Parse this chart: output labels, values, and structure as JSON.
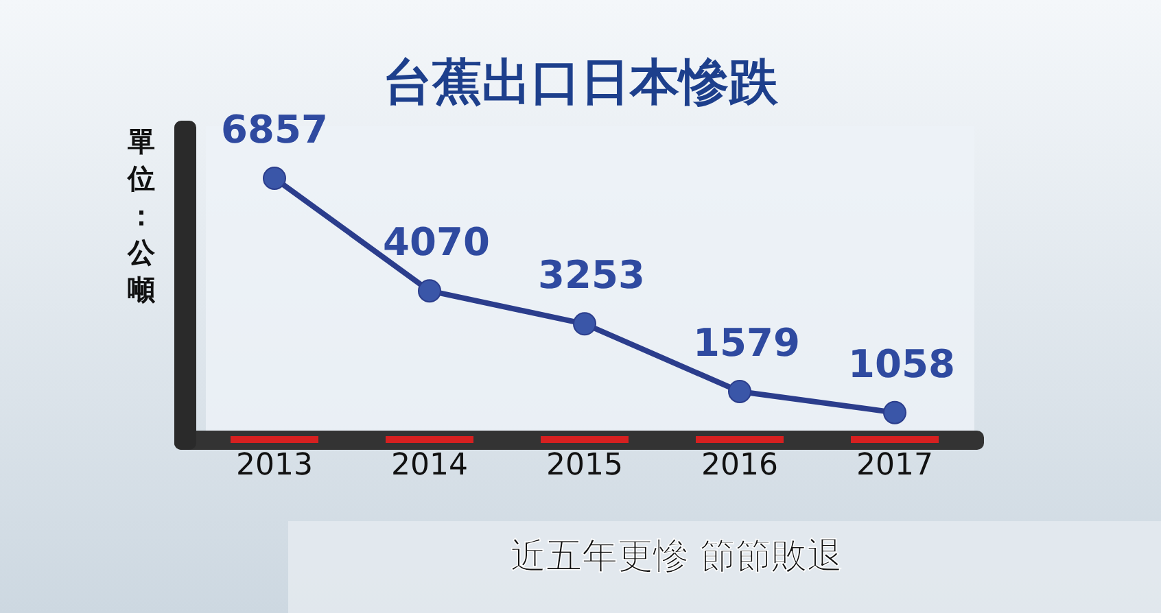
{
  "chart_data": {
    "type": "line",
    "title": "台蕉出口日本慘跌",
    "ylabel": "單位：公噸",
    "categories": [
      "2013",
      "2014",
      "2015",
      "2016",
      "2017"
    ],
    "series": [
      {
        "color": "#2b3d8c",
        "values": [
          6857,
          4070,
          3253,
          1579,
          1058
        ]
      }
    ],
    "marker": "circle",
    "data_labels": true,
    "annotations": [
      "近五年更慘 節節敗退"
    ]
  }
}
